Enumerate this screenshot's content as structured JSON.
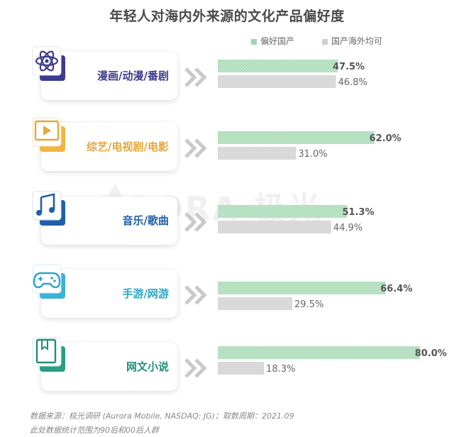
{
  "chart_data": {
    "type": "bar",
    "title": "年轻人对海内外来源的文化产品偏好度",
    "categories": [
      "漫画/动漫/番剧",
      "综艺/电视剧/电影",
      "音乐/歌曲",
      "手游/网游",
      "网文小说"
    ],
    "category_colors": [
      "#3d3a8f",
      "#e8a63a",
      "#1f5fa8",
      "#2aa6c7",
      "#1f8f7a"
    ],
    "series": [
      {
        "name": "偏好国产",
        "values": [
          47.5,
          62.0,
          51.3,
          66.4,
          80.0
        ],
        "color": "#bfe5c9",
        "labels": [
          "47.5%",
          "62.0%",
          "51.3%",
          "66.4%",
          "80.0%"
        ]
      },
      {
        "name": "国产海外均可",
        "values": [
          46.8,
          31.0,
          44.9,
          29.5,
          18.3
        ],
        "color": "#d9d9d9",
        "labels": [
          "46.8%",
          "31.0%",
          "44.9%",
          "29.5%",
          "18.3%"
        ]
      }
    ],
    "legend_position": "top-right",
    "xlim": [
      0,
      100
    ],
    "grid": false
  },
  "icons": [
    "atom-icon",
    "video-play-icon",
    "music-note-icon",
    "gamepad-icon",
    "book-icon"
  ],
  "watermark": "URORA 极光",
  "footnotes": [
    "数据来源：极光调研 (Aurora Mobile, NASDAQ: JG)；取数周期：2021.09",
    "此处数据统计范围为90后和00后人群"
  ]
}
